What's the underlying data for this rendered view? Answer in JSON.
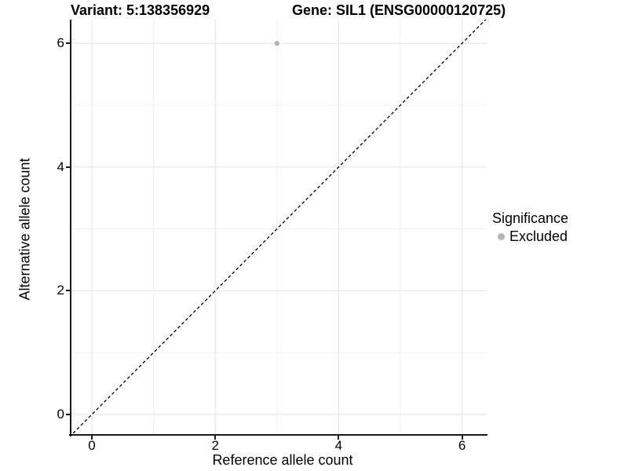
{
  "chart_data": {
    "type": "scatter",
    "titles": {
      "left": "Variant: 5:138356929",
      "right": "Gene: SIL1 (ENSG00000120725)"
    },
    "xlabel": "Reference allele count",
    "ylabel": "Alternative allele count",
    "xlim": [
      -0.33,
      6.42
    ],
    "ylim": [
      -0.33,
      6.4
    ],
    "x_major_ticks": [
      0,
      2,
      4,
      6
    ],
    "y_major_ticks": [
      0,
      2,
      4,
      6
    ],
    "x_minor_ticks": [
      1,
      3,
      5
    ],
    "y_minor_ticks": [
      1,
      3,
      5
    ],
    "grid": "major+minor",
    "series": [
      {
        "name": "Excluded",
        "color": "#b5b5b5",
        "points": [
          {
            "x": 3,
            "y": 6
          }
        ]
      }
    ],
    "reference_line": {
      "type": "abline",
      "slope": 1,
      "intercept": 0,
      "linestyle": "dashed",
      "color": "#000000"
    },
    "legend": {
      "title": "Significance",
      "position": "right",
      "entries": [
        {
          "label": "Excluded",
          "color": "#b5b5b5",
          "marker": "circle"
        }
      ]
    }
  },
  "colors": {
    "background": "#ffffff",
    "axis": "#1a1a1a",
    "grid_major": "#e4e4e4",
    "grid_minor": "#f1f1f1",
    "point": "#b5b5b5",
    "reference_line": "#000000"
  }
}
